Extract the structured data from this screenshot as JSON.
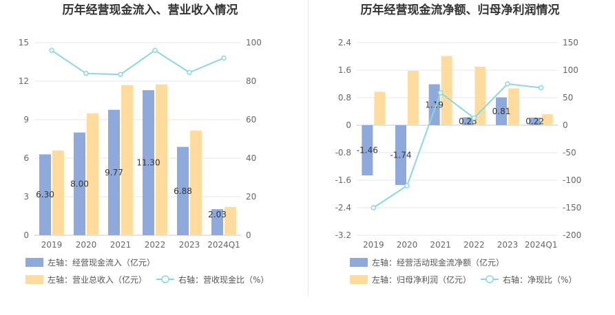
{
  "charts": [
    {
      "id": "left",
      "title": "历年经营现金流入、营业收入情况",
      "categories": [
        "2019",
        "2020",
        "2021",
        "2022",
        "2023",
        "2024Q1"
      ],
      "y_left_ticks": [
        "15",
        "12",
        "9",
        "6",
        "3",
        "0"
      ],
      "y_right_ticks": [
        "100",
        "80",
        "60",
        "40",
        "20",
        "0"
      ],
      "legend": [
        "左轴：经营现金流入（亿元）",
        "左轴：营业总收入（亿元）",
        "右轴：营收现金比（%）"
      ]
    },
    {
      "id": "right",
      "title": "历年经营现金流净额、归母净利润情况",
      "categories": [
        "2019",
        "2020",
        "2021",
        "2022",
        "2023",
        "2024Q1"
      ],
      "y_left_ticks": [
        "2.4",
        "1.6",
        "0.8",
        "0",
        "-0.8",
        "-1.6",
        "-2.4",
        "-3.2"
      ],
      "y_right_ticks": [
        "150",
        "100",
        "50",
        "0",
        "-50",
        "-100",
        "-150",
        "-200"
      ],
      "legend": [
        "左轴：经营活动现金流净额（亿元）",
        "左轴：归母净利润（亿元）",
        "右轴：净现比（%）"
      ]
    }
  ],
  "chart_data": [
    {
      "type": "bar",
      "title": "历年经营现金流入、营业收入情况",
      "categories": [
        "2019",
        "2020",
        "2021",
        "2022",
        "2023",
        "2024Q1"
      ],
      "ylim_left": [
        0,
        15
      ],
      "ylim_right": [
        0,
        100
      ],
      "series": [
        {
          "name": "左轴：经营现金流入（亿元）",
          "type": "bar",
          "axis": "left",
          "color": "#8eaadc",
          "values": [
            6.3,
            8.0,
            9.77,
            11.3,
            6.88,
            2.03
          ],
          "labels": [
            "6.30",
            "8.00",
            "9.77",
            "11.30",
            "6.88",
            "2.03"
          ]
        },
        {
          "name": "左轴：营业总收入（亿元）",
          "type": "bar",
          "axis": "left",
          "color": "#ffdc9e",
          "values": [
            6.6,
            9.5,
            11.7,
            11.75,
            8.15,
            2.2
          ]
        },
        {
          "name": "右轴：营收现金比（%）",
          "type": "line",
          "axis": "right",
          "color": "#8ad8dc",
          "values": [
            96,
            84,
            83.5,
            96,
            84.5,
            92
          ]
        }
      ]
    },
    {
      "type": "bar",
      "title": "历年经营现金流净额、归母净利润情况",
      "categories": [
        "2019",
        "2020",
        "2021",
        "2022",
        "2023",
        "2024Q1"
      ],
      "ylim_left": [
        -3.2,
        2.4
      ],
      "ylim_right": [
        -200,
        150
      ],
      "series": [
        {
          "name": "左轴：经营活动现金流净额（亿元）",
          "type": "bar",
          "axis": "left",
          "color": "#8eaadc",
          "values": [
            -1.46,
            -1.74,
            1.19,
            0.23,
            0.81,
            0.22
          ],
          "labels": [
            "-1.46",
            "-1.74",
            "1.19",
            "0.23",
            "0.81",
            "0.22"
          ]
        },
        {
          "name": "左轴：归母净利润（亿元）",
          "type": "bar",
          "axis": "left",
          "color": "#ffdc9e",
          "values": [
            0.97,
            1.58,
            2.01,
            1.7,
            1.07,
            0.32
          ]
        },
        {
          "name": "右轴：净现比（%）",
          "type": "line",
          "axis": "right",
          "color": "#8ad8dc",
          "values": [
            -150,
            -110,
            59,
            13,
            75,
            68
          ]
        }
      ]
    }
  ]
}
